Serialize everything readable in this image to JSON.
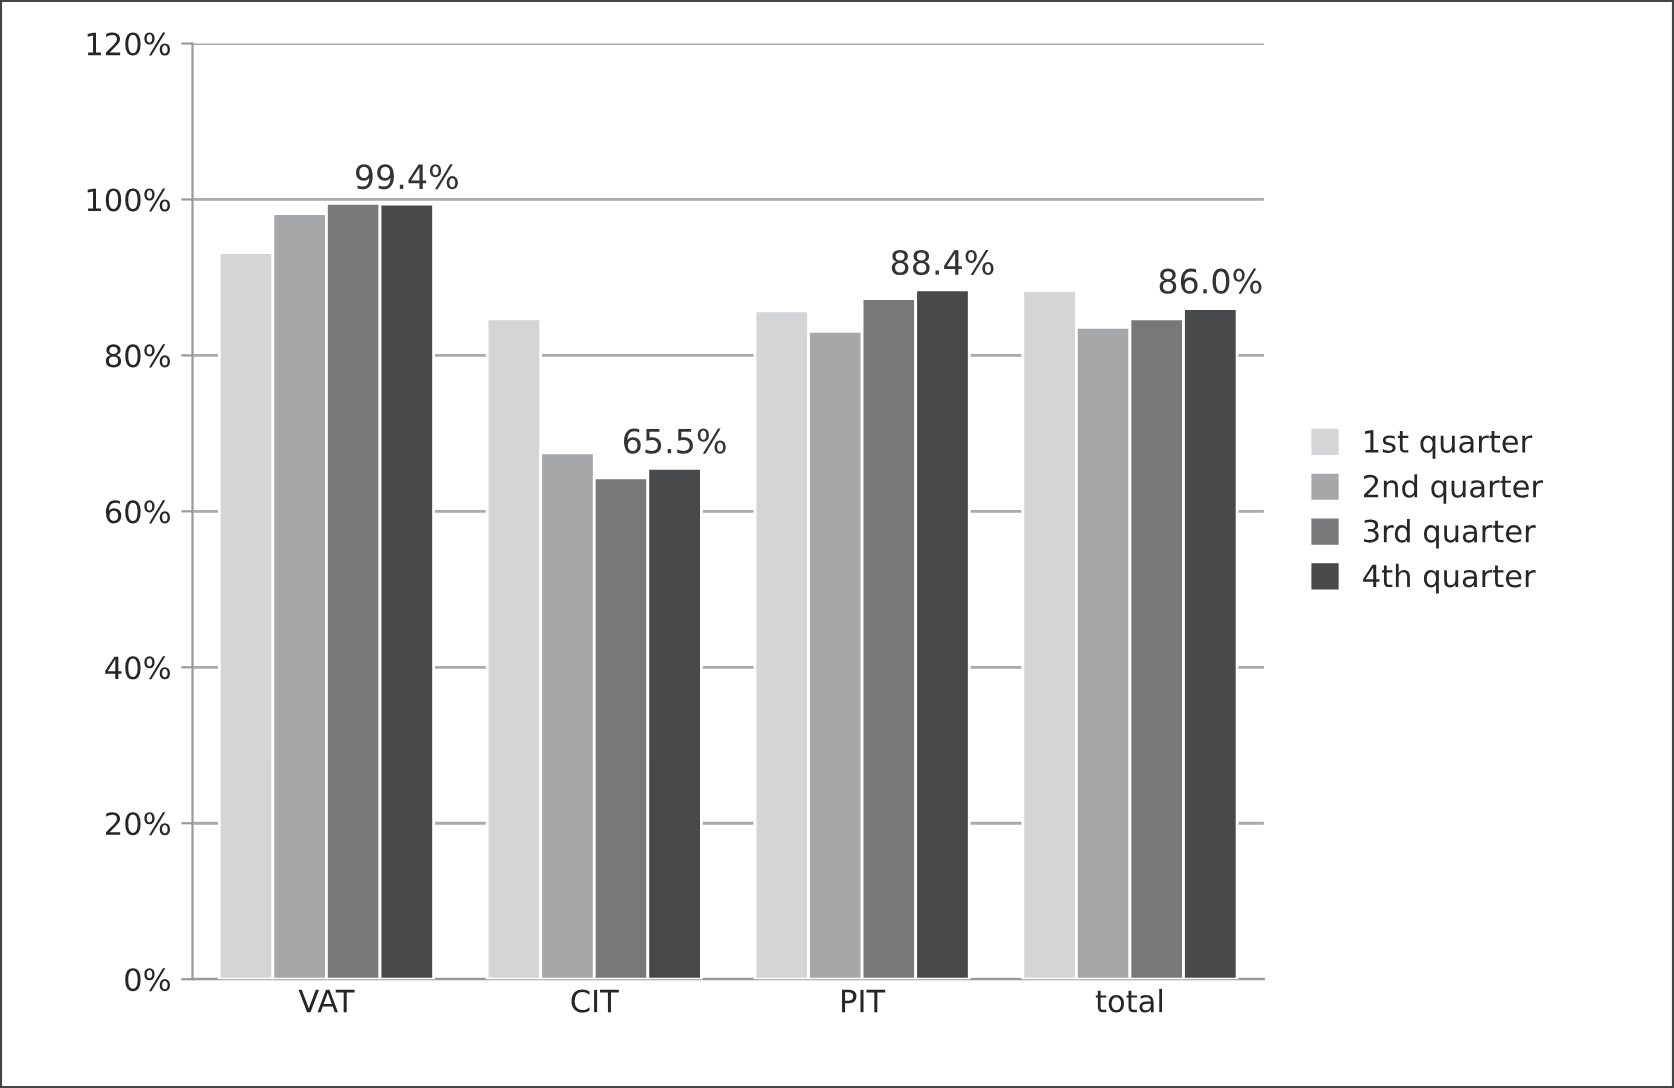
{
  "chart_data": {
    "type": "bar",
    "categories": [
      "VAT",
      "CIT",
      "PIT",
      "total"
    ],
    "series": [
      {
        "name": "1st quarter",
        "color": "#d4d5d7",
        "values": [
          93.2,
          84.7,
          85.7,
          88.3
        ]
      },
      {
        "name": "2nd quarter",
        "color": "#a6a7a9",
        "values": [
          98.2,
          67.5,
          83.1,
          83.6
        ]
      },
      {
        "name": "3rd quarter",
        "color": "#77787a",
        "values": [
          99.5,
          64.3,
          87.3,
          84.7
        ]
      },
      {
        "name": "4th quarter",
        "color": "#48494b",
        "values": [
          99.4,
          65.5,
          88.4,
          86.0
        ],
        "value_labels": [
          "99.4%",
          "65.5%",
          "88.4%",
          "86.0%"
        ]
      }
    ],
    "ylim": [
      0,
      120
    ],
    "yticks": [
      {
        "value": 0,
        "label": "0%"
      },
      {
        "value": 20,
        "label": "20%"
      },
      {
        "value": 40,
        "label": "40%"
      },
      {
        "value": 60,
        "label": "60%"
      },
      {
        "value": 80,
        "label": "80%"
      },
      {
        "value": 100,
        "label": "100%"
      },
      {
        "value": 120,
        "label": "120%"
      }
    ],
    "grid": "y",
    "legend": "right"
  }
}
